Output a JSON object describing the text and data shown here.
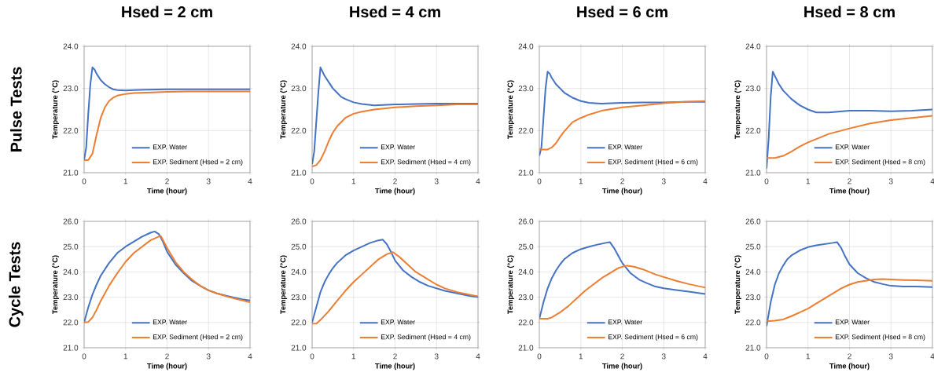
{
  "chart_data": [
    {
      "type": "line",
      "title": "Hsed = 2 cm",
      "xlabel": "Time (hour)",
      "ylabel": "Temperature (°C)",
      "annotations": [
        "Pulse Tests"
      ],
      "xlim": [
        0,
        4
      ],
      "xticks": [
        0,
        1,
        2,
        3,
        4
      ],
      "ylim": [
        21,
        24
      ],
      "yticks": [
        {
          "value": 21,
          "label": "21.0"
        },
        {
          "value": 22,
          "label": "22.0"
        },
        {
          "value": 23,
          "label": "23.0"
        },
        {
          "value": 24,
          "label": "24.0"
        }
      ],
      "grid": true,
      "legend": "bottom right",
      "series": [
        {
          "name": "EXP. Water",
          "color": "#4472c4",
          "x": [
            0,
            0.05,
            0.1,
            0.15,
            0.2,
            0.25,
            0.3,
            0.4,
            0.5,
            0.6,
            0.7,
            0.8,
            1.0,
            1.2,
            1.5,
            2,
            2.5,
            3,
            3.5,
            4
          ],
          "values": [
            21.3,
            21.6,
            22.4,
            23.1,
            23.5,
            23.45,
            23.35,
            23.2,
            23.1,
            23.03,
            22.98,
            22.96,
            22.95,
            22.96,
            22.97,
            22.98,
            22.98,
            22.98,
            22.98,
            22.98
          ]
        },
        {
          "name": "EXP. Sediment (Hsed = 2 cm)",
          "color": "#ed7d31",
          "x": [
            0,
            0.1,
            0.2,
            0.3,
            0.4,
            0.5,
            0.6,
            0.7,
            0.8,
            1.0,
            1.2,
            1.5,
            2,
            2.5,
            3,
            3.5,
            4
          ],
          "values": [
            21.3,
            21.3,
            21.45,
            21.9,
            22.3,
            22.55,
            22.7,
            22.78,
            22.83,
            22.87,
            22.89,
            22.9,
            22.92,
            22.93,
            22.93,
            22.93,
            22.93
          ]
        }
      ]
    },
    {
      "type": "line",
      "title": "Hsed = 4 cm",
      "xlabel": "Time (hour)",
      "ylabel": "Temperature (°C)",
      "xlim": [
        0,
        4
      ],
      "xticks": [
        0,
        1,
        2,
        3,
        4
      ],
      "ylim": [
        21,
        24
      ],
      "yticks": [
        {
          "value": 21,
          "label": "21.0"
        },
        {
          "value": 22,
          "label": "22.0"
        },
        {
          "value": 23,
          "label": "23.0"
        },
        {
          "value": 24,
          "label": "24.0"
        }
      ],
      "grid": true,
      "legend": "bottom right",
      "series": [
        {
          "name": "EXP. Water",
          "color": "#4472c4",
          "x": [
            0,
            0.05,
            0.1,
            0.15,
            0.2,
            0.25,
            0.3,
            0.4,
            0.5,
            0.6,
            0.7,
            0.8,
            1.0,
            1.2,
            1.5,
            2,
            2.5,
            3,
            3.5,
            4
          ],
          "values": [
            21.2,
            21.5,
            22.2,
            22.9,
            23.5,
            23.4,
            23.3,
            23.15,
            23.0,
            22.9,
            22.8,
            22.75,
            22.67,
            22.63,
            22.6,
            22.62,
            22.63,
            22.64,
            22.64,
            22.64
          ]
        },
        {
          "name": "EXP. Sediment (Hsed = 4 cm)",
          "color": "#ed7d31",
          "x": [
            0,
            0.1,
            0.2,
            0.3,
            0.4,
            0.5,
            0.6,
            0.8,
            1.0,
            1.2,
            1.5,
            2,
            2.5,
            3,
            3.5,
            4
          ],
          "values": [
            21.15,
            21.18,
            21.3,
            21.5,
            21.75,
            21.95,
            22.1,
            22.3,
            22.4,
            22.45,
            22.5,
            22.55,
            22.58,
            22.6,
            22.62,
            22.62
          ]
        }
      ]
    },
    {
      "type": "line",
      "title": "Hsed = 6 cm",
      "xlabel": "Time (hour)",
      "ylabel": "Temperature (°C)",
      "xlim": [
        0,
        4
      ],
      "xticks": [
        0,
        1,
        2,
        3,
        4
      ],
      "ylim": [
        21,
        24
      ],
      "yticks": [
        {
          "value": 21,
          "label": "21.0"
        },
        {
          "value": 22,
          "label": "22.0"
        },
        {
          "value": 23,
          "label": "23.0"
        },
        {
          "value": 24,
          "label": "24.0"
        }
      ],
      "grid": true,
      "legend": "bottom right",
      "series": [
        {
          "name": "EXP. Water",
          "color": "#4472c4",
          "x": [
            0,
            0.05,
            0.1,
            0.15,
            0.2,
            0.25,
            0.3,
            0.4,
            0.5,
            0.6,
            0.8,
            1.0,
            1.2,
            1.5,
            2,
            2.5,
            3,
            3.5,
            4
          ],
          "values": [
            21.4,
            21.6,
            22.3,
            23.0,
            23.4,
            23.35,
            23.25,
            23.1,
            23.0,
            22.9,
            22.78,
            22.7,
            22.66,
            22.64,
            22.66,
            22.67,
            22.67,
            22.68,
            22.68
          ]
        },
        {
          "name": "EXP. Sediment (Hsed = 6 cm)",
          "color": "#ed7d31",
          "x": [
            0,
            0.2,
            0.3,
            0.4,
            0.5,
            0.6,
            0.8,
            1.0,
            1.2,
            1.5,
            2,
            2.5,
            3,
            3.5,
            4
          ],
          "values": [
            21.55,
            21.55,
            21.6,
            21.7,
            21.85,
            21.98,
            22.2,
            22.3,
            22.38,
            22.47,
            22.55,
            22.6,
            22.65,
            22.68,
            22.7
          ]
        }
      ]
    },
    {
      "type": "line",
      "title": "Hsed = 8 cm",
      "xlabel": "Time (hour)",
      "ylabel": "Temperature (°C)",
      "xlim": [
        0,
        4
      ],
      "xticks": [
        0,
        1,
        2,
        3,
        4
      ],
      "ylim": [
        21,
        24
      ],
      "yticks": [
        {
          "value": 21,
          "label": "21.0"
        },
        {
          "value": 22,
          "label": "22.0"
        },
        {
          "value": 23,
          "label": "23.0"
        },
        {
          "value": 24,
          "label": "24.0"
        }
      ],
      "grid": true,
      "legend": "bottom right",
      "series": [
        {
          "name": "EXP. Water",
          "color": "#4472c4",
          "x": [
            0,
            0.05,
            0.1,
            0.15,
            0.2,
            0.3,
            0.4,
            0.5,
            0.6,
            0.8,
            1.0,
            1.2,
            1.5,
            2,
            2.5,
            3,
            3.5,
            4
          ],
          "values": [
            21.1,
            21.8,
            22.8,
            23.4,
            23.3,
            23.1,
            22.95,
            22.85,
            22.75,
            22.6,
            22.5,
            22.43,
            22.43,
            22.47,
            22.47,
            22.46,
            22.47,
            22.5
          ]
        },
        {
          "name": "EXP. Sediment (Hsed = 8 cm)",
          "color": "#ed7d31",
          "x": [
            0,
            0.2,
            0.4,
            0.6,
            0.8,
            1.0,
            1.2,
            1.5,
            2,
            2.5,
            3,
            3.5,
            4
          ],
          "values": [
            21.35,
            21.35,
            21.4,
            21.5,
            21.62,
            21.72,
            21.8,
            21.92,
            22.05,
            22.17,
            22.25,
            22.3,
            22.35
          ]
        }
      ]
    },
    {
      "type": "line",
      "xlabel": "Time (hour)",
      "ylabel": "Temperature (°C)",
      "annotations": [
        "Cycle Tests"
      ],
      "xlim": [
        0,
        4
      ],
      "xticks": [
        0,
        1,
        2,
        3,
        4
      ],
      "ylim": [
        21,
        26
      ],
      "yticks": [
        {
          "value": 21,
          "label": "21.0"
        },
        {
          "value": 22,
          "label": "22.0"
        },
        {
          "value": 23,
          "label": "23.0"
        },
        {
          "value": 24,
          "label": "24.0"
        },
        {
          "value": 25,
          "label": "25.0"
        },
        {
          "value": 26,
          "label": "26.0"
        }
      ],
      "grid": true,
      "legend": "bottom right",
      "series": [
        {
          "name": "EXP. Water",
          "color": "#4472c4",
          "x": [
            0,
            0.1,
            0.2,
            0.3,
            0.4,
            0.5,
            0.6,
            0.8,
            1.0,
            1.2,
            1.4,
            1.6,
            1.7,
            1.8,
            1.9,
            2.0,
            2.2,
            2.4,
            2.6,
            2.8,
            3.0,
            3.2,
            3.5,
            3.8,
            4
          ],
          "values": [
            22.0,
            22.6,
            23.1,
            23.5,
            23.85,
            24.1,
            24.35,
            24.75,
            25.0,
            25.2,
            25.4,
            25.55,
            25.6,
            25.5,
            25.2,
            24.8,
            24.3,
            23.95,
            23.65,
            23.45,
            23.27,
            23.15,
            23.03,
            22.92,
            22.87
          ]
        },
        {
          "name": "EXP. Sediment (Hsed = 2 cm)",
          "color": "#ed7d31",
          "x": [
            0,
            0.1,
            0.2,
            0.3,
            0.4,
            0.5,
            0.6,
            0.8,
            1.0,
            1.2,
            1.4,
            1.6,
            1.8,
            1.85,
            2.0,
            2.2,
            2.4,
            2.6,
            2.8,
            3.0,
            3.2,
            3.5,
            3.8,
            4
          ],
          "values": [
            22.0,
            22.02,
            22.2,
            22.5,
            22.85,
            23.15,
            23.45,
            23.95,
            24.4,
            24.75,
            25.0,
            25.25,
            25.4,
            25.42,
            24.95,
            24.4,
            24.0,
            23.7,
            23.45,
            23.27,
            23.15,
            23.0,
            22.88,
            22.8
          ]
        }
      ]
    },
    {
      "type": "line",
      "xlabel": "Time (hour)",
      "ylabel": "Temperature (°C)",
      "xlim": [
        0,
        4
      ],
      "xticks": [
        0,
        1,
        2,
        3,
        4
      ],
      "ylim": [
        21,
        26
      ],
      "yticks": [
        {
          "value": 21,
          "label": "21.0"
        },
        {
          "value": 22,
          "label": "22.0"
        },
        {
          "value": 23,
          "label": "23.0"
        },
        {
          "value": 24,
          "label": "24.0"
        },
        {
          "value": 25,
          "label": "25.0"
        },
        {
          "value": 26,
          "label": "26.0"
        }
      ],
      "grid": true,
      "legend": "bottom right",
      "series": [
        {
          "name": "EXP. Water",
          "color": "#4472c4",
          "x": [
            0,
            0.1,
            0.2,
            0.3,
            0.4,
            0.5,
            0.6,
            0.8,
            1.0,
            1.2,
            1.4,
            1.6,
            1.7,
            1.8,
            1.9,
            2.0,
            2.2,
            2.4,
            2.6,
            2.8,
            3.0,
            3.2,
            3.5,
            3.8,
            4
          ],
          "values": [
            22.0,
            22.6,
            23.2,
            23.6,
            23.9,
            24.15,
            24.35,
            24.65,
            24.85,
            25.0,
            25.15,
            25.25,
            25.28,
            25.1,
            24.8,
            24.45,
            24.05,
            23.8,
            23.6,
            23.45,
            23.35,
            23.25,
            23.15,
            23.05,
            23.0
          ]
        },
        {
          "name": "EXP. Sediment (Hsed = 4 cm)",
          "color": "#ed7d31",
          "x": [
            0,
            0.1,
            0.2,
            0.4,
            0.6,
            0.8,
            1.0,
            1.2,
            1.4,
            1.6,
            1.8,
            1.95,
            2.1,
            2.3,
            2.5,
            2.8,
            3.0,
            3.2,
            3.5,
            3.8,
            4
          ],
          "values": [
            21.95,
            21.95,
            22.1,
            22.45,
            22.85,
            23.25,
            23.6,
            23.9,
            24.2,
            24.5,
            24.7,
            24.78,
            24.6,
            24.3,
            24.0,
            23.7,
            23.5,
            23.35,
            23.2,
            23.1,
            23.03
          ]
        }
      ]
    },
    {
      "type": "line",
      "xlabel": "Time (hour)",
      "ylabel": "Temperature (°C)",
      "xlim": [
        0,
        4
      ],
      "xticks": [
        0,
        1,
        2,
        3,
        4
      ],
      "ylim": [
        21,
        26
      ],
      "yticks": [
        {
          "value": 21,
          "label": "21.0"
        },
        {
          "value": 22,
          "label": "22.0"
        },
        {
          "value": 23,
          "label": "23.0"
        },
        {
          "value": 24,
          "label": "24.0"
        },
        {
          "value": 25,
          "label": "25.0"
        },
        {
          "value": 26,
          "label": "26.0"
        }
      ],
      "grid": true,
      "legend": "bottom right",
      "series": [
        {
          "name": "EXP. Water",
          "color": "#4472c4",
          "x": [
            0,
            0.1,
            0.2,
            0.3,
            0.4,
            0.5,
            0.6,
            0.8,
            1.0,
            1.2,
            1.4,
            1.6,
            1.7,
            1.8,
            1.9,
            2.0,
            2.2,
            2.4,
            2.6,
            2.8,
            3.0,
            3.3,
            3.6,
            4
          ],
          "values": [
            22.15,
            22.8,
            23.35,
            23.75,
            24.05,
            24.3,
            24.5,
            24.75,
            24.9,
            25.0,
            25.08,
            25.15,
            25.18,
            24.95,
            24.65,
            24.35,
            23.95,
            23.7,
            23.55,
            23.42,
            23.35,
            23.28,
            23.22,
            23.13
          ]
        },
        {
          "name": "EXP. Sediment (Hsed = 6 cm)",
          "color": "#ed7d31",
          "x": [
            0,
            0.2,
            0.3,
            0.5,
            0.7,
            0.9,
            1.1,
            1.3,
            1.5,
            1.7,
            1.9,
            2.1,
            2.3,
            2.5,
            2.8,
            3.0,
            3.3,
            3.6,
            4
          ],
          "values": [
            22.15,
            22.15,
            22.2,
            22.4,
            22.65,
            22.95,
            23.25,
            23.5,
            23.75,
            23.95,
            24.15,
            24.25,
            24.2,
            24.1,
            23.9,
            23.8,
            23.65,
            23.52,
            23.38
          ]
        }
      ]
    },
    {
      "type": "line",
      "xlabel": "Time (hour)",
      "ylabel": "Temperature (°C)",
      "xlim": [
        0,
        4
      ],
      "xticks": [
        0,
        1,
        2,
        3,
        4
      ],
      "ylim": [
        21,
        26
      ],
      "yticks": [
        {
          "value": 21,
          "label": "21.0"
        },
        {
          "value": 22,
          "label": "22.0"
        },
        {
          "value": 23,
          "label": "23.0"
        },
        {
          "value": 24,
          "label": "24.0"
        },
        {
          "value": 25,
          "label": "25.0"
        },
        {
          "value": 26,
          "label": "26.0"
        }
      ],
      "grid": true,
      "legend": "bottom right",
      "series": [
        {
          "name": "EXP. Water",
          "color": "#4472c4",
          "x": [
            0,
            0.1,
            0.2,
            0.3,
            0.4,
            0.5,
            0.6,
            0.8,
            1.0,
            1.2,
            1.4,
            1.6,
            1.7,
            1.8,
            1.9,
            2.0,
            2.2,
            2.4,
            2.6,
            2.8,
            3.0,
            3.3,
            3.6,
            4
          ],
          "values": [
            21.85,
            22.8,
            23.5,
            23.95,
            24.25,
            24.5,
            24.65,
            24.85,
            24.98,
            25.05,
            25.1,
            25.15,
            25.18,
            24.95,
            24.6,
            24.3,
            23.95,
            23.75,
            23.6,
            23.52,
            23.45,
            23.42,
            23.42,
            23.4
          ]
        },
        {
          "name": "EXP. Sediment (Hsed = 8 cm)",
          "color": "#ed7d31",
          "x": [
            0,
            0.2,
            0.4,
            0.6,
            0.8,
            1.0,
            1.2,
            1.4,
            1.6,
            1.8,
            2.0,
            2.2,
            2.4,
            2.6,
            2.8,
            3.0,
            3.3,
            3.6,
            4
          ],
          "values": [
            22.05,
            22.07,
            22.12,
            22.25,
            22.4,
            22.55,
            22.75,
            22.95,
            23.15,
            23.35,
            23.5,
            23.6,
            23.65,
            23.7,
            23.72,
            23.7,
            23.68,
            23.67,
            23.65
          ]
        }
      ]
    }
  ]
}
